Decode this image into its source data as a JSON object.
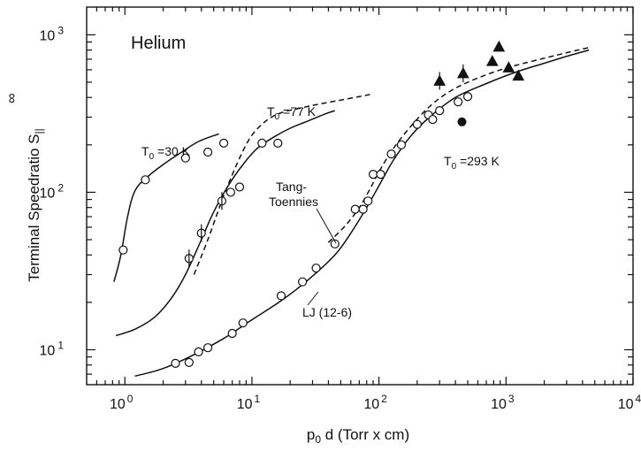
{
  "chart_data": {
    "type": "scatter",
    "gas_label": "Helium",
    "xlabel": {
      "main": "p",
      "sub": "0",
      "rest": " d (Torr x cm)"
    },
    "ylabel": {
      "main": "Terminal Speedratio S",
      "sup": "∞",
      "sub": "||"
    },
    "xscale": "log",
    "yscale": "log",
    "xlim": [
      0.5,
      10000
    ],
    "ylim": [
      6,
      1500
    ],
    "x_ticks": [
      {
        "value": 1,
        "base": "10",
        "exp": "0"
      },
      {
        "value": 10,
        "base": "10",
        "exp": "1"
      },
      {
        "value": 100,
        "base": "10",
        "exp": "2"
      },
      {
        "value": 1000,
        "base": "10",
        "exp": "3"
      },
      {
        "value": 10000,
        "base": "10",
        "exp": "4"
      }
    ],
    "y_ticks": [
      {
        "value": 10,
        "base": "10",
        "exp": "1"
      },
      {
        "value": 100,
        "base": "10",
        "exp": "2"
      },
      {
        "value": 1000,
        "base": "10",
        "exp": "3"
      }
    ],
    "grid": false,
    "legend": "none",
    "temperature_labels": [
      {
        "base": "T",
        "sub": "0",
        "rest": " =30 K"
      },
      {
        "base": "T",
        "sub": "0",
        "rest": " =77 K"
      },
      {
        "base": "T",
        "sub": "0",
        "rest": " =293 K"
      }
    ],
    "curve_labels": [
      {
        "lines": [
          "Tang-",
          "Toennies"
        ]
      },
      {
        "lines": [
          "LJ (12-6)"
        ]
      }
    ],
    "series": [
      {
        "style": "solid",
        "x": [
          0.82,
          0.93,
          1.05,
          1.2,
          1.5,
          2.0,
          2.8,
          3.8,
          5.5
        ],
        "y": [
          27,
          40,
          70,
          102,
          125,
          150,
          180,
          210,
          235
        ]
      },
      {
        "style": "solid",
        "x": [
          0.85,
          1.2,
          1.7,
          2.3,
          3.0,
          4.0,
          5.0,
          6.5,
          8.5,
          11,
          15,
          20,
          28,
          38,
          45
        ],
        "y": [
          12.3,
          13.5,
          16,
          21,
          30,
          50,
          75,
          110,
          150,
          190,
          225,
          255,
          285,
          315,
          330
        ]
      },
      {
        "style": "dashed",
        "x": [
          3.5,
          4.5,
          6.0,
          8.0,
          10,
          13,
          17,
          25,
          35,
          50,
          70,
          85
        ],
        "y": [
          30,
          50,
          95,
          165,
          230,
          285,
          320,
          345,
          365,
          385,
          405,
          418
        ]
      },
      {
        "style": "solid",
        "x": [
          1.2,
          2.0,
          3.5,
          6,
          10,
          17,
          28,
          45,
          60,
          80,
          100,
          130,
          180,
          250,
          400,
          700,
          1200,
          2000,
          3000,
          4500
        ],
        "y": [
          6.8,
          7.6,
          9.3,
          11.8,
          15.5,
          20.5,
          28,
          40,
          55,
          80,
          110,
          160,
          230,
          300,
          400,
          490,
          580,
          660,
          730,
          800
        ]
      },
      {
        "style": "dashed",
        "x": [
          40,
          55,
          70,
          85,
          100,
          130,
          180,
          250,
          350,
          500,
          800,
          1200,
          2000,
          3000,
          4500
        ],
        "y": [
          48,
          62,
          80,
          105,
          135,
          190,
          265,
          350,
          430,
          500,
          580,
          640,
          710,
          770,
          830
        ]
      },
      {
        "style": "markers-open",
        "x": [
          0.97,
          1.45,
          3.0,
          4.5,
          6.0,
          3.2,
          4.0,
          5.8,
          6.8,
          8.0,
          12,
          16,
          2.5,
          3.2,
          3.8,
          4.5,
          7.0,
          8.5,
          17,
          25,
          32,
          45,
          65,
          75,
          82,
          90,
          103,
          125,
          150,
          200,
          245,
          265,
          300,
          420,
          500
        ],
        "y": [
          43,
          120,
          165,
          180,
          205,
          38,
          55,
          88,
          100,
          108,
          205,
          205,
          8.2,
          8.3,
          9.7,
          10.3,
          12.7,
          14.8,
          22,
          27,
          33,
          47,
          78,
          78,
          88,
          130,
          130,
          175,
          200,
          270,
          310,
          290,
          330,
          375,
          405
        ]
      },
      {
        "style": "markers-filled-circle",
        "x": [
          450
        ],
        "y": [
          280
        ]
      },
      {
        "style": "markers-filled-triangle",
        "x": [
          300,
          460,
          780,
          880,
          1050,
          1250
        ],
        "y": [
          510,
          570,
          680,
          840,
          620,
          550
        ]
      }
    ]
  }
}
